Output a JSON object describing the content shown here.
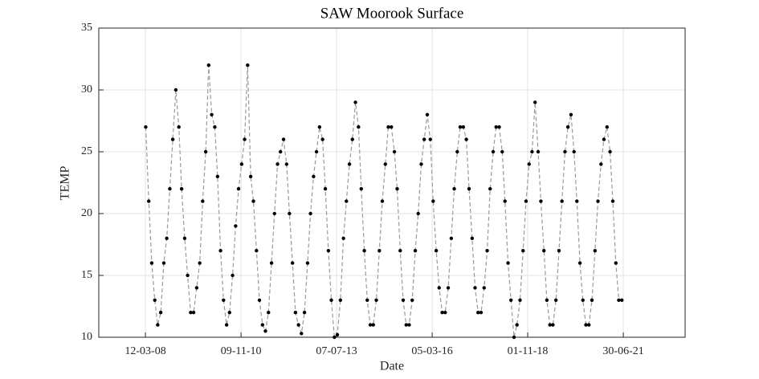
{
  "chart_data": {
    "type": "line",
    "title": "SAW Moorook Surface",
    "x_label": "Date",
    "y_label": "TEMP",
    "xlim": [
      "24-11-06",
      "20-03-23"
    ],
    "xticks": [
      "12-03-08",
      "09-11-10",
      "07-07-13",
      "05-03-16",
      "01-11-18",
      "30-06-21"
    ],
    "ylim": [
      10,
      35
    ],
    "yticks": [
      10,
      15,
      20,
      25,
      30,
      35
    ],
    "grid": true,
    "series": [
      {
        "name": "TEMP",
        "color": "#000000",
        "x": [
          "15-03-08",
          "15-04-08",
          "15-05-08",
          "15-06-08",
          "15-07-08",
          "15-08-08",
          "15-09-08",
          "15-10-08",
          "15-11-08",
          "15-12-08",
          "15-01-09",
          "15-02-09",
          "15-03-09",
          "15-04-09",
          "15-05-09",
          "15-06-09",
          "15-07-09",
          "15-08-09",
          "15-09-09",
          "15-10-09",
          "15-11-09",
          "15-12-09",
          "15-01-10",
          "15-02-10",
          "15-03-10",
          "15-04-10",
          "15-05-10",
          "15-06-10",
          "15-07-10",
          "15-08-10",
          "15-09-10",
          "15-10-10",
          "15-11-10",
          "15-12-10",
          "15-01-11",
          "15-02-11",
          "15-03-11",
          "15-04-11",
          "15-05-11",
          "15-06-11",
          "15-07-11",
          "15-08-11",
          "15-09-11",
          "15-10-11",
          "15-11-11",
          "15-12-11",
          "15-01-12",
          "15-02-12",
          "15-03-12",
          "15-04-12",
          "15-05-12",
          "15-06-12",
          "15-07-12",
          "15-08-12",
          "15-09-12",
          "15-10-12",
          "15-11-12",
          "15-12-12",
          "15-01-13",
          "15-02-13",
          "15-03-13",
          "15-04-13",
          "15-05-13",
          "15-06-13",
          "15-07-13",
          "15-08-13",
          "15-09-13",
          "15-10-13",
          "15-11-13",
          "15-12-13",
          "15-01-14",
          "15-02-14",
          "15-03-14",
          "15-04-14",
          "15-05-14",
          "15-06-14",
          "15-07-14",
          "15-08-14",
          "15-09-14",
          "15-10-14",
          "15-11-14",
          "15-12-14",
          "15-01-15",
          "15-02-15",
          "15-03-15",
          "15-04-15",
          "15-05-15",
          "15-06-15",
          "15-07-15",
          "15-08-15",
          "15-09-15",
          "15-10-15",
          "15-11-15",
          "15-12-15",
          "15-01-16",
          "15-02-16",
          "15-03-16",
          "15-04-16",
          "15-05-16",
          "15-06-16",
          "15-07-16",
          "15-08-16",
          "15-09-16",
          "15-10-16",
          "15-11-16",
          "15-12-16",
          "15-01-17",
          "15-02-17",
          "15-03-17",
          "15-04-17",
          "15-05-17",
          "15-06-17",
          "15-07-17",
          "15-08-17",
          "15-09-17",
          "15-10-17",
          "15-11-17",
          "15-12-17",
          "15-01-18",
          "15-02-18",
          "15-03-18",
          "15-04-18",
          "15-05-18",
          "15-06-18",
          "15-07-18",
          "15-08-18",
          "15-09-18",
          "15-10-18",
          "15-11-18",
          "15-12-18",
          "15-01-19",
          "15-02-19",
          "15-03-19",
          "15-04-19",
          "15-05-19",
          "15-06-19",
          "15-07-19",
          "15-08-19",
          "15-09-19",
          "15-10-19",
          "15-11-19",
          "15-12-19",
          "15-01-20",
          "15-02-20",
          "15-03-20",
          "15-04-20",
          "15-05-20",
          "15-06-20",
          "15-07-20",
          "15-08-20",
          "15-09-20",
          "15-10-20",
          "15-11-20",
          "15-12-20",
          "15-01-21",
          "15-02-21",
          "15-03-21",
          "15-04-21",
          "15-05-21",
          "15-06-21"
        ],
        "values": [
          27,
          21,
          16,
          13,
          11,
          12,
          16,
          18,
          22,
          26,
          30,
          27,
          22,
          18,
          15,
          12,
          12,
          14,
          16,
          21,
          25,
          32,
          28,
          27,
          23,
          17,
          13,
          11,
          12,
          15,
          19,
          22,
          24,
          26,
          32,
          23,
          21,
          17,
          13,
          11,
          10.5,
          12,
          16,
          20,
          24,
          25,
          26,
          24,
          20,
          16,
          12,
          11,
          10.3,
          12,
          16,
          20,
          23,
          25,
          27,
          26,
          22,
          17,
          13,
          10,
          10.2,
          13,
          18,
          21,
          24,
          26,
          29,
          27,
          22,
          17,
          13,
          11,
          11,
          13,
          17,
          21,
          24,
          27,
          27,
          25,
          22,
          17,
          13,
          11,
          11,
          13,
          17,
          20,
          24,
          26,
          28,
          26,
          21,
          17,
          14,
          12,
          12,
          14,
          18,
          22,
          25,
          27,
          27,
          26,
          22,
          18,
          14,
          12,
          12,
          14,
          17,
          22,
          25,
          27,
          27,
          25,
          21,
          16,
          13,
          10,
          11,
          13,
          17,
          21,
          24,
          25,
          29,
          25,
          21,
          17,
          13,
          11,
          11,
          13,
          17,
          21,
          25,
          27,
          28,
          25,
          21,
          16,
          13,
          11,
          11,
          13,
          17,
          21,
          24,
          26,
          27,
          25,
          21,
          16,
          13,
          13
        ]
      }
    ]
  }
}
